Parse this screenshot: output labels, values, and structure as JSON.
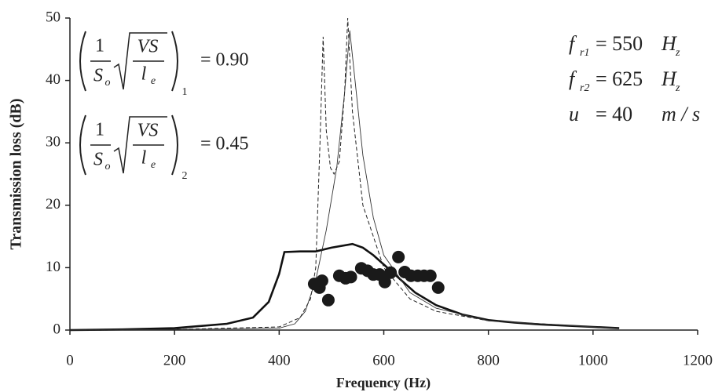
{
  "chart_data": {
    "type": "line",
    "x_label": "Frequency (Hz)",
    "y_label": "Transmission loss (dB)",
    "xlim": [
      0,
      1200
    ],
    "xticks": [
      0,
      200,
      400,
      600,
      800,
      1000,
      1200
    ],
    "ylim": [
      0,
      50
    ],
    "yticks": [
      0,
      10,
      20,
      30,
      40,
      50
    ],
    "series": [
      {
        "color": "#111111",
        "style": "thick",
        "x": [
          0,
          100,
          200,
          300,
          350,
          380,
          400,
          410,
          440,
          470,
          500,
          540,
          560,
          580,
          600,
          620,
          640,
          660,
          700,
          750,
          800,
          850,
          900,
          1000,
          1050
        ],
        "values": [
          0,
          0.1,
          0.3,
          1,
          2,
          4.5,
          9,
          12.5,
          12.6,
          12.6,
          13.2,
          13.8,
          13.2,
          12,
          10.5,
          9,
          7.5,
          6,
          4,
          2.5,
          1.6,
          1.2,
          0.9,
          0.5,
          0.3
        ]
      },
      {
        "color": "#222222",
        "style": "dashed",
        "x": [
          0,
          200,
          400,
          440,
          460,
          470,
          478,
          484,
          490,
          498,
          505,
          515,
          525,
          531,
          540,
          560,
          600,
          650,
          700,
          800,
          1000,
          1050
        ],
        "values": [
          0,
          0.1,
          0.5,
          2,
          5,
          10,
          30,
          47,
          32,
          26,
          25,
          27,
          38,
          50,
          35,
          20,
          10,
          5,
          3,
          1.5,
          0.5,
          0.3
        ]
      },
      {
        "color": "#333333",
        "style": "thin",
        "x": [
          0,
          200,
          400,
          430,
          450,
          470,
          490,
          510,
          525,
          535,
          545,
          560,
          580,
          600,
          650,
          700,
          800,
          1000,
          1050
        ],
        "values": [
          0,
          0.1,
          0.3,
          1,
          3,
          8,
          16,
          26,
          38,
          48,
          40,
          28,
          18,
          12,
          6,
          3.5,
          1.5,
          0.5,
          0.3
        ]
      }
    ],
    "points": {
      "color": "#1a1a1a",
      "x": [
        467,
        477,
        482,
        494,
        515,
        527,
        537,
        557,
        569,
        580,
        592,
        602,
        613,
        628,
        640,
        652,
        665,
        677,
        689,
        704
      ],
      "values": [
        7.4,
        6.8,
        7.9,
        4.8,
        8.7,
        8.3,
        8.5,
        9.9,
        9.5,
        8.9,
        8.9,
        7.7,
        9.2,
        11.7,
        9.3,
        8.7,
        8.7,
        8.7,
        8.7,
        6.8
      ]
    },
    "annotations": {
      "formulas": [
        {
          "num": "1",
          "den": "S",
          "den_sub": "o",
          "root_num": "VS",
          "root_den": "l",
          "root_den_sub": "e",
          "index": "1",
          "value": "= 0.90"
        },
        {
          "num": "1",
          "den": "S",
          "den_sub": "o",
          "root_num": "VS",
          "root_den": "l",
          "root_den_sub": "e",
          "index": "2",
          "value": "= 0.45"
        }
      ],
      "params": [
        {
          "symbol": "f",
          "sub": "r1",
          "text": "= 550",
          "unit": "H",
          "unit_sub": "z"
        },
        {
          "symbol": "f",
          "sub": "r2",
          "text": "= 625",
          "unit": "H",
          "unit_sub": "z"
        },
        {
          "symbol": "u",
          "sub": "",
          "text": "= 40",
          "unit": "m / s",
          "unit_sub": ""
        }
      ]
    }
  }
}
